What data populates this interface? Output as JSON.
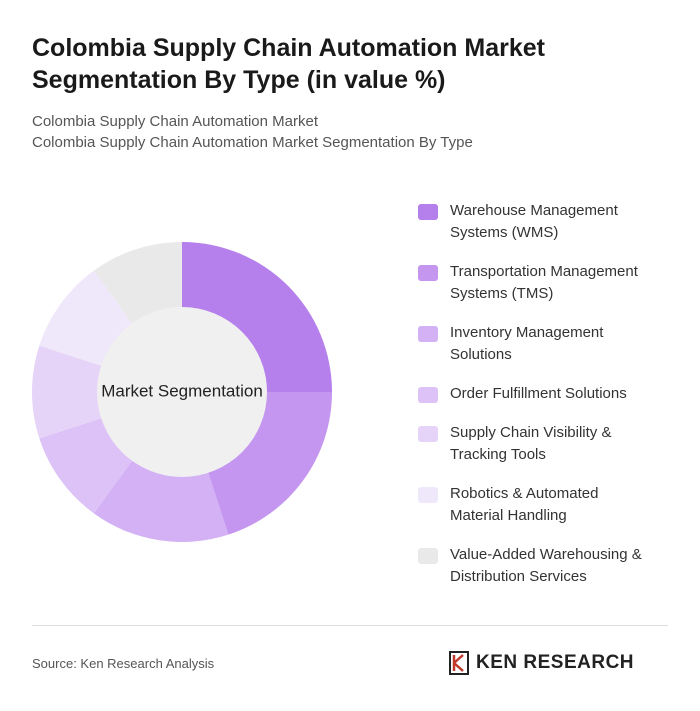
{
  "chart_data": {
    "type": "donut",
    "title": "Colombia Supply Chain Automation Market Segmentation By Type (in value %)",
    "subtitle": [
      "Colombia Supply Chain Automation Market",
      "Colombia Supply Chain Automation Market Segmentation By Type"
    ],
    "center_label": "Market Segmentation",
    "categories": [
      "Warehouse Management Systems (WMS)",
      "Transportation Management Systems (TMS)",
      "Inventory Management Solutions",
      "Order Fulfillment Solutions",
      "Supply Chain Visibility & Tracking Tools",
      "Robotics & Automated Material Handling",
      "Value-Added Warehousing & Distribution Services"
    ],
    "values": [
      25,
      20,
      15,
      10,
      10,
      10,
      10
    ],
    "colors": [
      "#b57fec",
      "#c496f0",
      "#d3b1f4",
      "#dcc2f6",
      "#e6d4f8",
      "#efe7fa",
      "#e9e9e9"
    ],
    "source": "Source: Ken Research Analysis",
    "brand": "KEN RESEARCH"
  }
}
